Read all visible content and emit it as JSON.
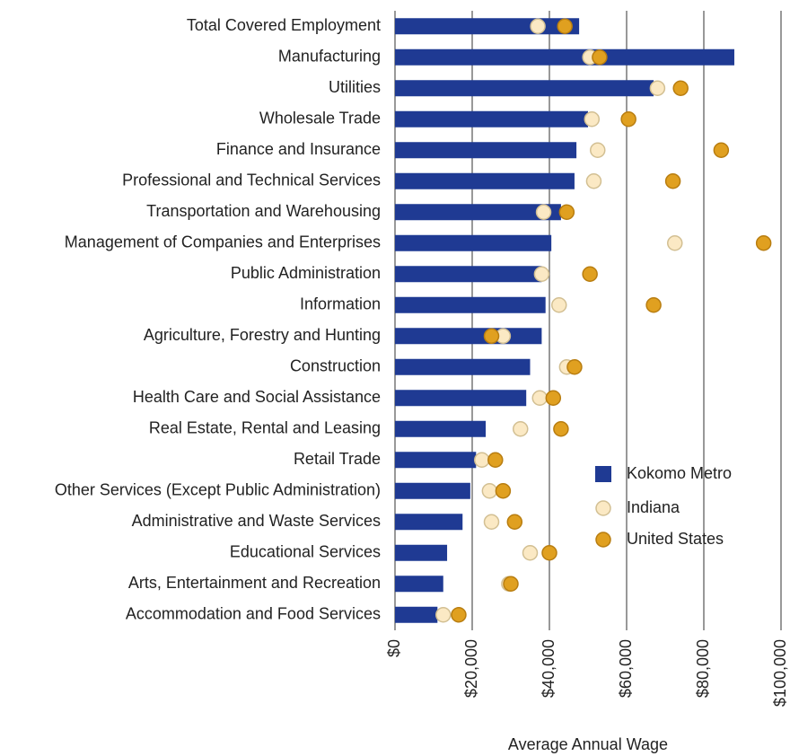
{
  "chart_data": {
    "type": "bar",
    "orientation": "horizontal",
    "x_label": "Average Annual Wage",
    "categories": [
      "Total Covered Employment",
      "Manufacturing",
      "Utilities",
      "Wholesale Trade",
      "Finance and Insurance",
      "Professional and Technical Services",
      "Transportation and Warehousing",
      "Management of Companies and Enterprises",
      "Public Administration",
      "Information",
      "Agriculture, Forestry and Hunting",
      "Construction",
      "Health Care and Social Assistance",
      "Real Estate, Rental and Leasing",
      "Retail Trade",
      "Other Services (Except Public Administration)",
      "Administrative and Waste Services",
      "Educational Services",
      "Arts, Entertainment and Recreation",
      "Accommodation and Food Services"
    ],
    "series": [
      {
        "name": "Kokomo Metro",
        "color": "#1f3a93",
        "marker": "bar",
        "values": [
          47700,
          87900,
          67000,
          50000,
          47000,
          46500,
          43000,
          40500,
          38000,
          39000,
          38000,
          35000,
          34000,
          23500,
          21000,
          19500,
          17500,
          13500,
          12500,
          11000
        ]
      },
      {
        "name": "Indiana",
        "color": "#fbe9c4",
        "marker": "circle",
        "values": [
          37000,
          50500,
          68000,
          51000,
          52500,
          51500,
          38500,
          72500,
          38000,
          42500,
          28000,
          44500,
          37500,
          32500,
          22500,
          24500,
          25000,
          35000,
          29500,
          12500
        ]
      },
      {
        "name": "United States",
        "color": "#e0a020",
        "marker": "circle",
        "values": [
          44000,
          53000,
          74000,
          60500,
          84500,
          72000,
          44500,
          95500,
          50500,
          67000,
          25000,
          46500,
          41000,
          43000,
          26000,
          28000,
          31000,
          40000,
          30000,
          16500
        ]
      }
    ],
    "xlim": [
      0,
      100000
    ],
    "xticks": [
      {
        "value": 0,
        "label": "$0"
      },
      {
        "value": 20000,
        "label": "$20,000"
      },
      {
        "value": 40000,
        "label": "$40,000"
      },
      {
        "value": 60000,
        "label": "$60,000"
      },
      {
        "value": 80000,
        "label": "$80,000"
      },
      {
        "value": 100000,
        "label": "$100,000"
      }
    ],
    "grid": true,
    "legend": "lower right"
  }
}
